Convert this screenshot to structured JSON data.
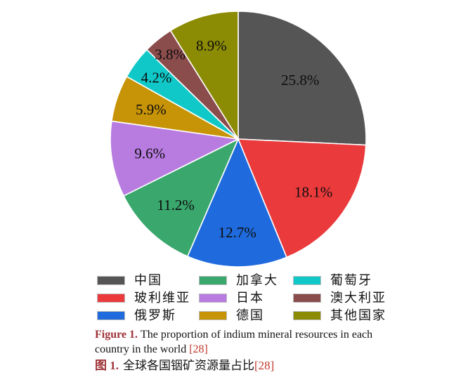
{
  "chart_data": {
    "type": "pie",
    "title": "",
    "direction": "clockwise",
    "start_angle": "12-o-clock",
    "legend_position": "bottom",
    "slices": [
      {
        "name": "中国",
        "value": 25.8,
        "label": "25.8%",
        "color": "#555555"
      },
      {
        "name": "玻利维亚",
        "value": 18.1,
        "label": "18.1%",
        "color": "#ea3a3c"
      },
      {
        "name": "俄罗斯",
        "value": 12.7,
        "label": "12.7%",
        "color": "#1f6bdd"
      },
      {
        "name": "加拿大",
        "value": 11.2,
        "label": "11.2%",
        "color": "#3aa76d"
      },
      {
        "name": "日本",
        "value": 9.6,
        "label": "9.6%",
        "color": "#b87ce0"
      },
      {
        "name": "德国",
        "value": 5.9,
        "label": "5.9%",
        "color": "#c79307"
      },
      {
        "name": "葡萄牙",
        "value": 4.2,
        "label": "4.2%",
        "color": "#10c8c8"
      },
      {
        "name": "澳大利亚",
        "value": 3.8,
        "label": "3.8%",
        "color": "#8b4c4c"
      },
      {
        "name": "其他国家",
        "value": 8.9,
        "label": "8.9%",
        "color": "#8c8c04"
      }
    ]
  },
  "caption": {
    "en_label": "Figure 1.",
    "en_text": "The proportion of indium mineral resources in each country in the world",
    "en_cite": "[28]",
    "zh_label": "图 1.",
    "zh_text": "全球各国铟矿资源量占比",
    "zh_cite": "[28]"
  },
  "colors": {
    "background": "#ffffff",
    "caption_label": "#9e3339",
    "caption_cite": "#c0392b",
    "percent_label": "#0d0d0d",
    "slice_separator": "#ffffff"
  }
}
